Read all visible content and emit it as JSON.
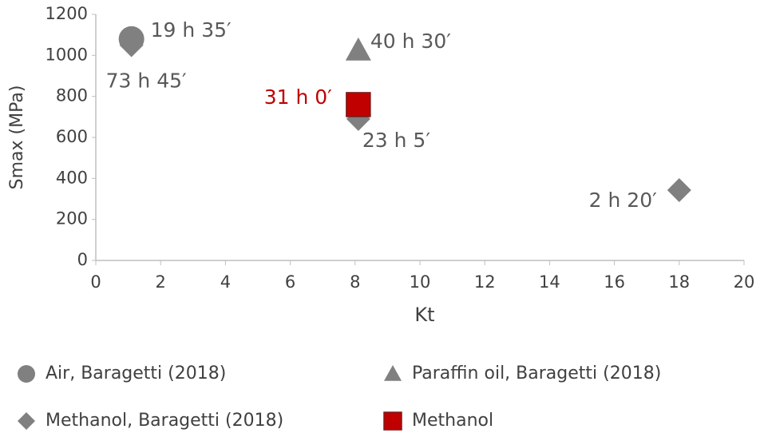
{
  "chart_data": {
    "type": "scatter",
    "x_label": "Kt",
    "y_label": "Smax (MPa)",
    "xlim": [
      0,
      20
    ],
    "ylim": [
      0,
      1200
    ],
    "xticks": [
      0,
      2,
      4,
      6,
      8,
      10,
      12,
      14,
      16,
      18,
      20
    ],
    "yticks": [
      0,
      200,
      400,
      600,
      800,
      1000,
      1200
    ],
    "legend": "bottom",
    "series": [
      {
        "name": "Air, Baragetti (2018)",
        "marker": "circle",
        "color": "#808080",
        "x": [
          1.1
        ],
        "values": [
          1080
        ],
        "point_labels": [
          "19 h 35′"
        ]
      },
      {
        "name": "Paraffin oil, Baragetti (2018)",
        "marker": "triangle",
        "color": "#808080",
        "x": [
          8.1
        ],
        "values": [
          1025
        ],
        "point_labels": [
          "40 h 30′"
        ]
      },
      {
        "name": "Methanol, Baragetti (2018)",
        "marker": "diamond",
        "color": "#808080",
        "x": [
          1.1,
          8.1,
          18
        ],
        "values": [
          1050,
          690,
          343
        ],
        "point_labels": [
          "73 h 45′",
          "23 h 5′",
          "2 h 20′"
        ]
      },
      {
        "name": "Methanol",
        "marker": "square",
        "color": "#c00000",
        "x": [
          8.1
        ],
        "values": [
          760
        ],
        "point_labels": [
          "31 h 0′"
        ]
      }
    ]
  }
}
